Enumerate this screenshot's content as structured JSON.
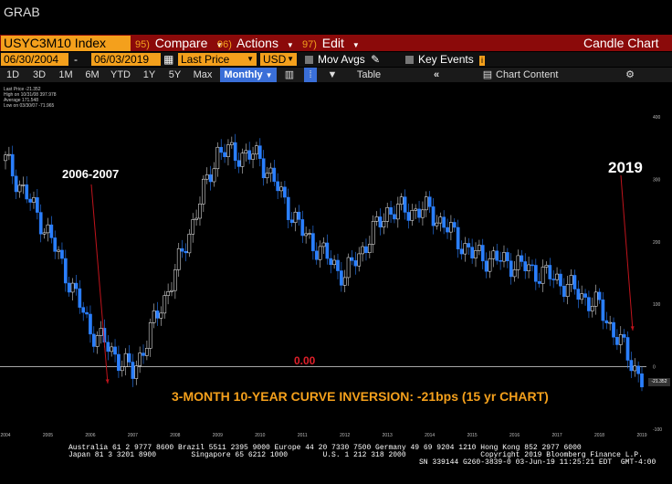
{
  "window": {
    "title": "GRAB"
  },
  "command_bar": {
    "ticker": "USYC3M10 Index",
    "compare": {
      "num": "95)",
      "label": "Compare"
    },
    "actions": {
      "num": "96)",
      "label": "Actions"
    },
    "edit": {
      "num": "97)",
      "label": "Edit"
    },
    "chart_type": "Candle Chart"
  },
  "settings_bar": {
    "start_date": "06/30/2004",
    "end_date": "06/03/2019",
    "dash": "-",
    "price_field": "Last Price",
    "currency": "USD",
    "mov_avgs": "Mov Avgs",
    "key_events": "Key Events"
  },
  "toolbar": {
    "periods": [
      "1D",
      "3D",
      "1M",
      "6M",
      "YTD",
      "1Y",
      "5Y",
      "Max"
    ],
    "frequency": "Monthly",
    "table": "Table",
    "chart_content": "Chart Content"
  },
  "legend": [
    "Last Price   -21.352",
    "High on 10/31/08  397.978",
    "Average  171.548",
    "Low on 03/30/07  -71.965"
  ],
  "annotations": {
    "period_label": "2006-2007",
    "year_label": "2019",
    "zero_label": "0.00",
    "caption": "3-MONTH 10-YEAR CURVE INVERSION: -21bps (15 yr CHART)",
    "last_value": "-21.352"
  },
  "colors": {
    "accent": "#f4a01c",
    "command_bar": "#8b0a0a",
    "candle_up": "#ffffff",
    "candle_down": "#2a7fff",
    "caption": "#f4a01c",
    "zero_label": "#e0202a"
  },
  "footer": {
    "line1": "Australia 61 2 9777 8600 Brazil 5511 2395 9000 Europe 44 20 7330 7500 Germany 49 69 9204 1210 Hong Kong 852 2977 6000",
    "line2": "Japan 81 3 3201 8900        Singapore 65 6212 1000        U.S. 1 212 318 2000                 Copyright 2019 Bloomberg Finance L.P.",
    "line3": "SN 339144 G260-3839-0 03-Jun-19 11:25:21 EDT  GMT-4:00"
  },
  "chart_data": {
    "type": "candlestick",
    "x": [
      "2004",
      "2005",
      "2006",
      "2007",
      "2008",
      "2009",
      "2010",
      "2011",
      "2012",
      "2013",
      "2014",
      "2015",
      "2016",
      "2017",
      "2018",
      "2019"
    ],
    "x_ticks": [
      "2004",
      "2005",
      "2006",
      "2007",
      "2008",
      "2009",
      "2010",
      "2011",
      "2012",
      "2013",
      "2014",
      "2015",
      "2016",
      "2017",
      "2018",
      "2019"
    ],
    "values": [
      330,
      215,
      60,
      -10,
      150,
      345,
      335,
      215,
      145,
      250,
      250,
      180,
      165,
      140,
      95,
      -21
    ],
    "y_ticks": [
      400,
      300,
      200,
      100,
      0,
      -100
    ],
    "ylim": [
      -100,
      400
    ],
    "grid": false
  }
}
